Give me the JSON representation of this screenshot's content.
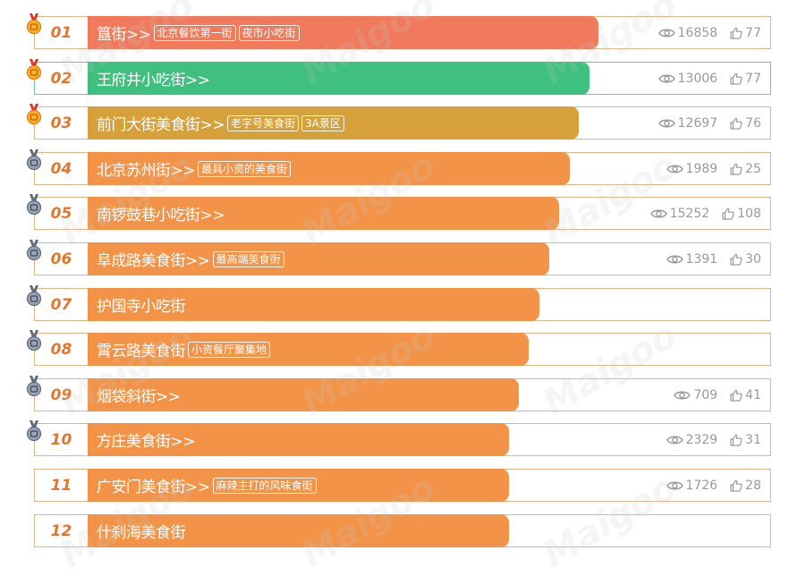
{
  "watermark": "Maigoo",
  "colors": {
    "rank": "#e1762c",
    "border": "#e3b487",
    "stats": "#9a9a9a"
  },
  "rows": [
    {
      "rank": "01",
      "name": "簋街>>",
      "tags": [
        "北京餐饮第一街",
        "夜市小吃街"
      ],
      "views": "16858",
      "likes": "77",
      "bar_color": "#f07a5b",
      "bar_fraction": 0.747,
      "medal": "gold"
    },
    {
      "rank": "02",
      "name": "王府井小吃街>>",
      "tags": [],
      "views": "13006",
      "likes": "77",
      "bar_color": "#3fc07f",
      "bar_fraction": 0.733,
      "medal": "gold"
    },
    {
      "rank": "03",
      "name": "前门大街美食街>>",
      "tags": [
        "老字号美食街",
        "3A景区"
      ],
      "views": "12697",
      "likes": "76",
      "bar_color": "#d6a03a",
      "bar_fraction": 0.718,
      "medal": "gold"
    },
    {
      "rank": "04",
      "name": "北京苏州街>>",
      "tags": [
        "最具小资的美食街"
      ],
      "views": "1989",
      "likes": "25",
      "bar_color": "#f39348",
      "bar_fraction": 0.704,
      "medal": "silver"
    },
    {
      "rank": "05",
      "name": "南锣鼓巷小吃街>>",
      "tags": [],
      "views": "15252",
      "likes": "108",
      "bar_color": "#f39348",
      "bar_fraction": 0.689,
      "medal": "silver"
    },
    {
      "rank": "06",
      "name": "阜成路美食街>>",
      "tags": [
        "最高端美食街"
      ],
      "views": "1391",
      "likes": "30",
      "bar_color": "#f39348",
      "bar_fraction": 0.674,
      "medal": "silver"
    },
    {
      "rank": "07",
      "name": "护国寺小吃街",
      "tags": [],
      "views": "",
      "likes": "",
      "bar_color": "#f39348",
      "bar_fraction": 0.66,
      "medal": "silver"
    },
    {
      "rank": "08",
      "name": "霄云路美食街",
      "tags": [
        "小资餐厅聚集地"
      ],
      "views": "",
      "likes": "",
      "bar_color": "#f39348",
      "bar_fraction": 0.645,
      "medal": "silver"
    },
    {
      "rank": "09",
      "name": "烟袋斜街>>",
      "tags": [],
      "views": "709",
      "likes": "41",
      "bar_color": "#f39348",
      "bar_fraction": 0.63,
      "medal": "silver"
    },
    {
      "rank": "10",
      "name": "方庄美食街>>",
      "tags": [],
      "views": "2329",
      "likes": "31",
      "bar_color": "#f39348",
      "bar_fraction": 0.616,
      "medal": "silver"
    },
    {
      "rank": "11",
      "name": "广安门美食街>>",
      "tags": [
        "麻辣主打的风味食街"
      ],
      "views": "1726",
      "likes": "28",
      "bar_color": "#f39348",
      "bar_fraction": 0.616,
      "medal": ""
    },
    {
      "rank": "12",
      "name": "什刹海美食街",
      "tags": [],
      "views": "",
      "likes": "",
      "bar_color": "#f39348",
      "bar_fraction": 0.616,
      "medal": ""
    }
  ]
}
